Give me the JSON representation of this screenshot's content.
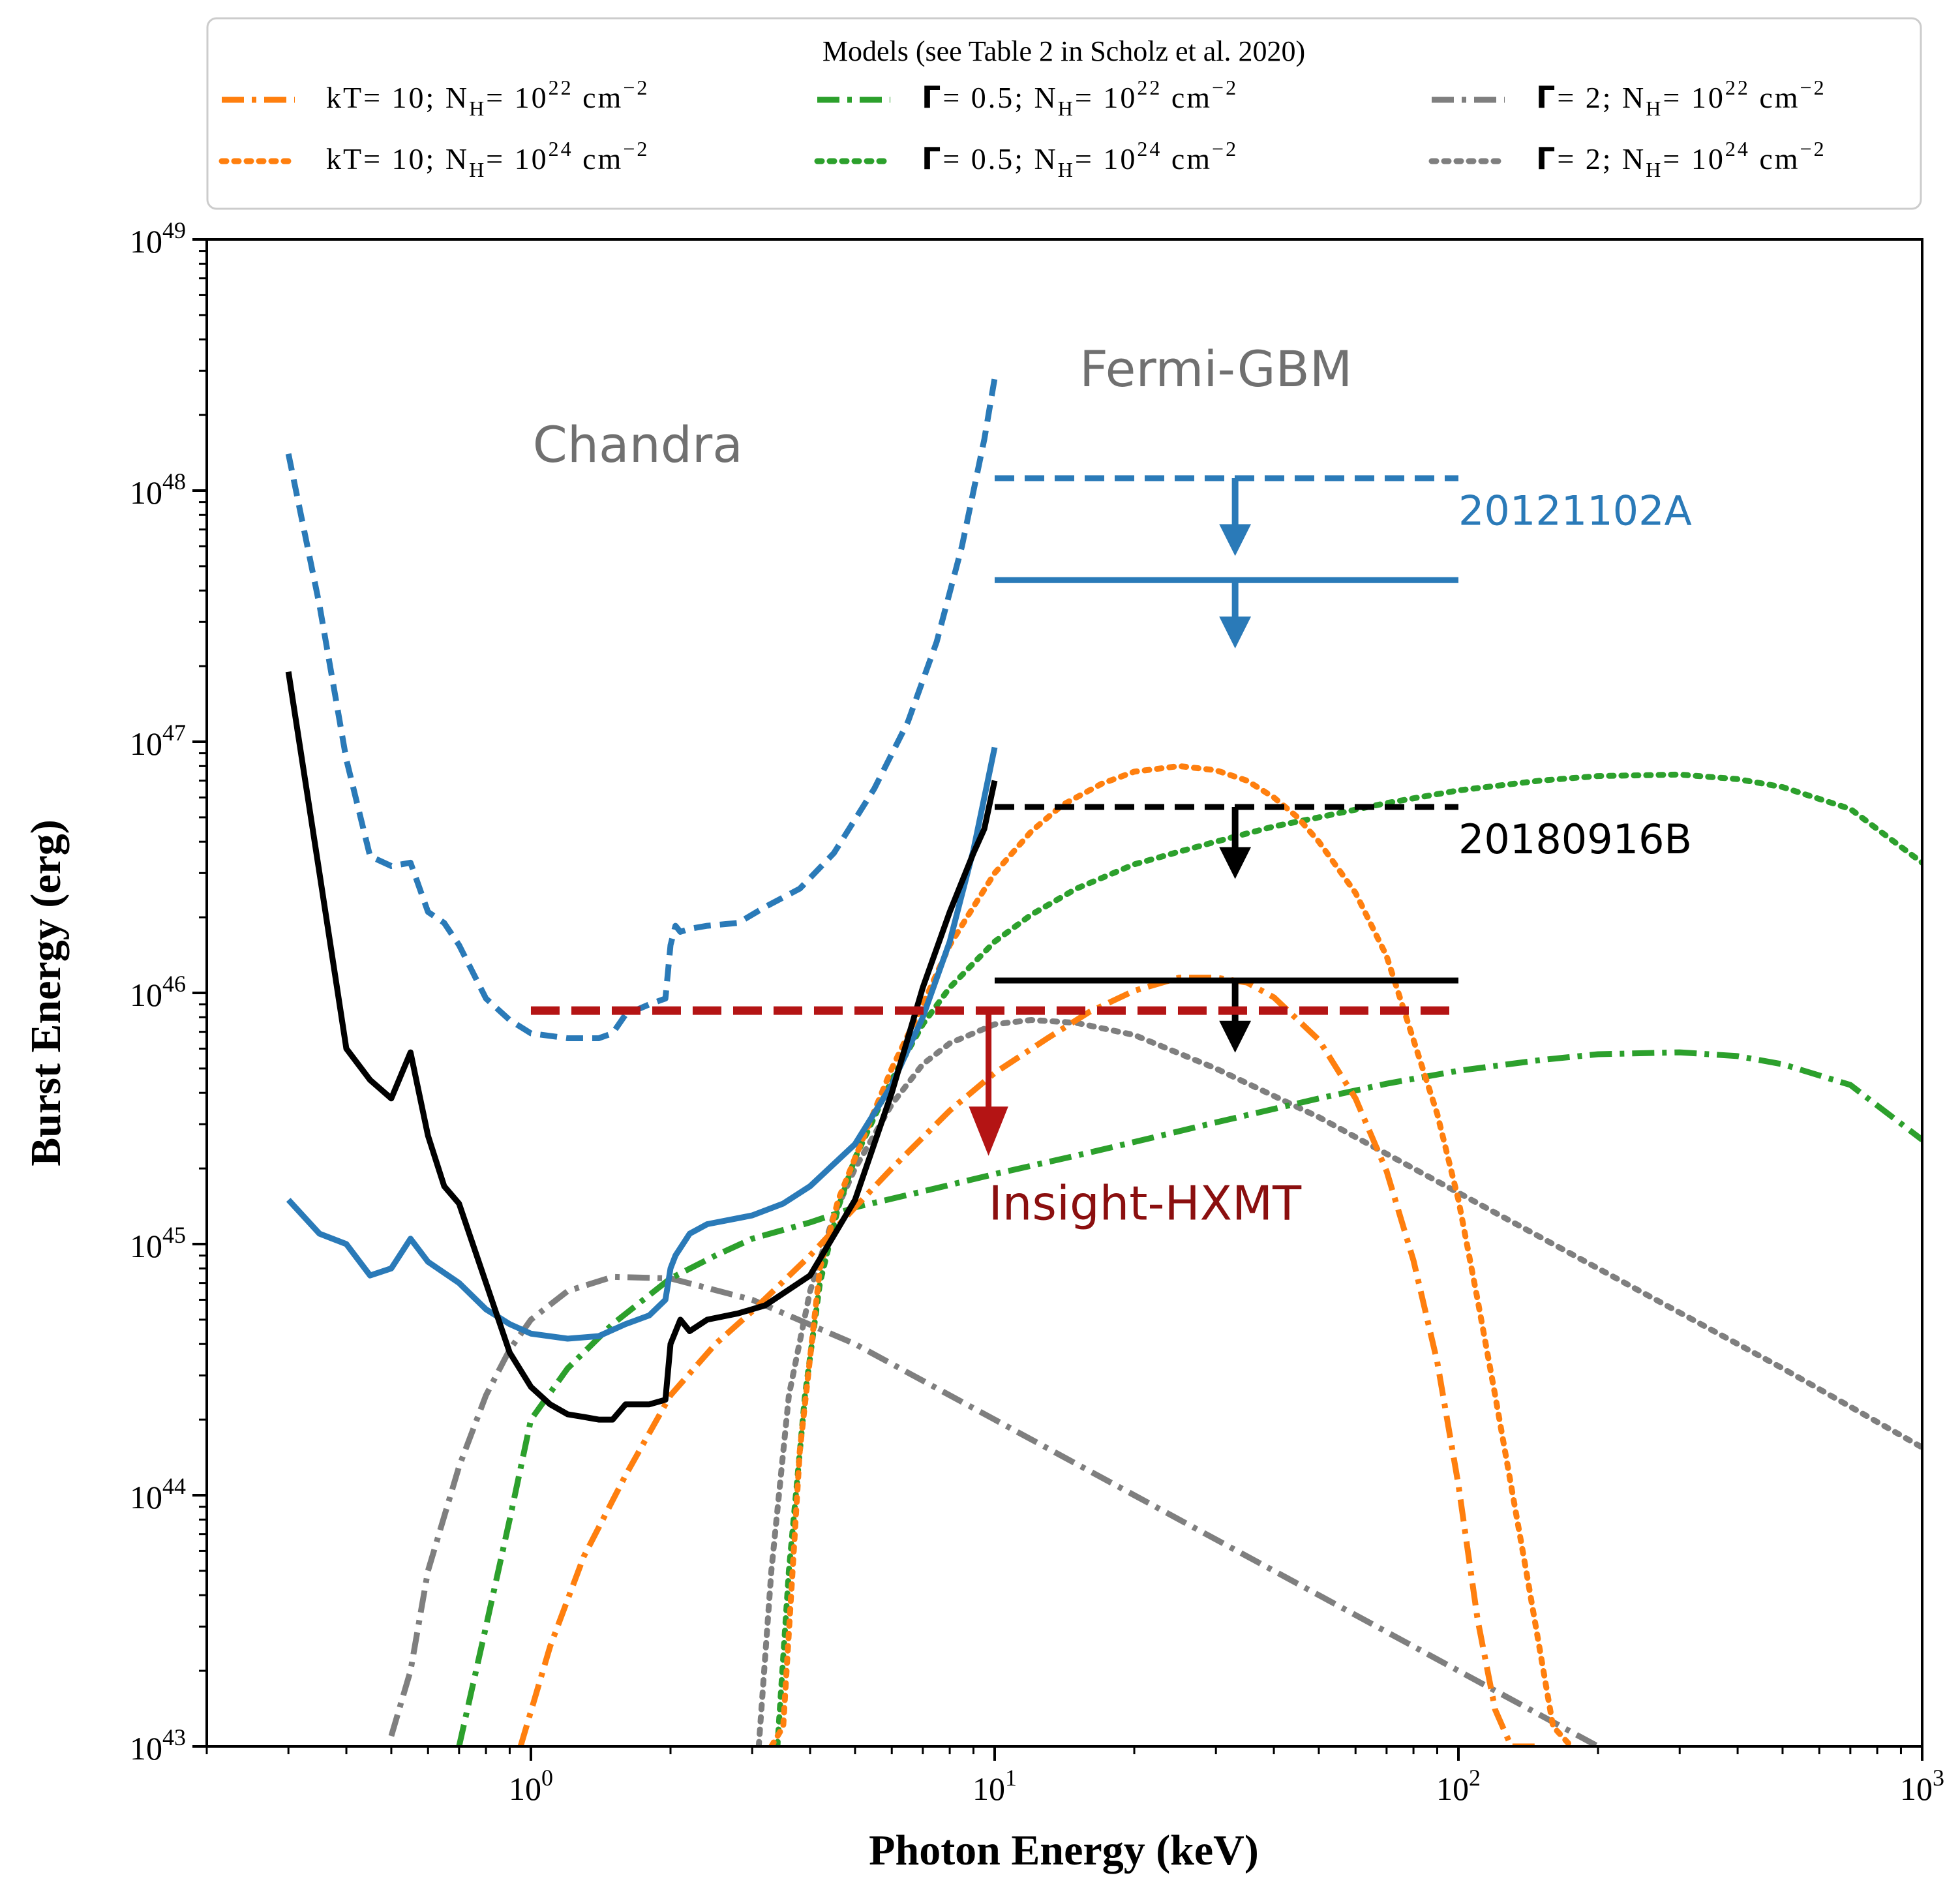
{
  "chart_data": {
    "type": "line",
    "xscale": "log",
    "yscale": "log",
    "xlim": [
      0.2,
      1000
    ],
    "ylim": [
      1e+43,
      1e+49
    ],
    "xlabel": "Photon Energy (keV)",
    "ylabel": "Burst Energy (erg)",
    "x_ticks": [
      {
        "value": 1,
        "base": "10",
        "exp": "0"
      },
      {
        "value": 10,
        "base": "10",
        "exp": "1"
      },
      {
        "value": 100,
        "base": "10",
        "exp": "2"
      },
      {
        "value": 1000,
        "base": "10",
        "exp": "3"
      }
    ],
    "y_ticks": [
      {
        "value": 1e+43,
        "base": "10",
        "exp": "43"
      },
      {
        "value": 1e+44,
        "base": "10",
        "exp": "44"
      },
      {
        "value": 1e+45,
        "base": "10",
        "exp": "45"
      },
      {
        "value": 1e+46,
        "base": "10",
        "exp": "46"
      },
      {
        "value": 1e+47,
        "base": "10",
        "exp": "47"
      },
      {
        "value": 1e+48,
        "base": "10",
        "exp": "48"
      },
      {
        "value": 1e+49,
        "base": "10",
        "exp": "49"
      }
    ],
    "legend": {
      "title": "Models (see Table 2 in Scholz et al. 2020)",
      "placement": "top, outside plot",
      "entries": [
        {
          "series": "kT10_NH22",
          "param": "kT",
          "param_value": "10",
          "nh_exp": "22",
          "unit": "cm",
          "unit_exp": "−2"
        },
        {
          "series": "G05_NH22",
          "param": "Γ",
          "param_value": "0.5",
          "nh_exp": "22",
          "unit": "cm",
          "unit_exp": "−2"
        },
        {
          "series": "G2_NH22",
          "param": "Γ",
          "param_value": "2",
          "nh_exp": "22",
          "unit": "cm",
          "unit_exp": "−2"
        },
        {
          "series": "kT10_NH24",
          "param": "kT",
          "param_value": "10",
          "nh_exp": "24",
          "unit": "cm",
          "unit_exp": "−2"
        },
        {
          "series": "G05_NH24",
          "param": "Γ",
          "param_value": "0.5",
          "nh_exp": "24",
          "unit": "cm",
          "unit_exp": "−2"
        },
        {
          "series": "G2_NH24",
          "param": "Γ",
          "param_value": "2",
          "nh_exp": "24",
          "unit": "cm",
          "unit_exp": "−2"
        }
      ],
      "nh_symbol": "N",
      "nh_sub": "H",
      "nh_base": "10"
    },
    "annotations": [
      {
        "id": "chandra",
        "text": "Chandra",
        "x": 1.7,
        "y": 1.3e+48,
        "color": "#707070"
      },
      {
        "id": "fermi",
        "text": "Fermi-GBM",
        "x": 30,
        "y": 2.6e+48,
        "color": "#707070"
      },
      {
        "id": "frb2012",
        "text": "20121102A",
        "x": 100,
        "y": 7.3e+47,
        "color": "#2a7ab8"
      },
      {
        "id": "frb2018",
        "text": "20180916B",
        "x": 100,
        "y": 3.6e+46,
        "color": "#000000"
      },
      {
        "id": "hxmt",
        "text": "Insight-HXMT",
        "x": 9.7,
        "y": 1.25e+45,
        "color": "#8b0f0f"
      }
    ],
    "limits": [
      {
        "name": "Fermi 20121102A dashed",
        "x": [
          10,
          100
        ],
        "y": 1.12e+48,
        "style": "dashed",
        "color": "#2a7ab8",
        "arrow_x": 33,
        "arrow_to": 5.6e+47
      },
      {
        "name": "Fermi 20121102A solid",
        "x": [
          10,
          100
        ],
        "y": 4.4e+47,
        "style": "solid",
        "color": "#2a7ab8",
        "arrow_x": 33,
        "arrow_to": 2.4e+47
      },
      {
        "name": "Fermi 20180916B dashed",
        "x": [
          10,
          100
        ],
        "y": 5.5e+46,
        "style": "dashed",
        "color": "#000000",
        "arrow_x": 33,
        "arrow_to": 2.9e+46
      },
      {
        "name": "Fermi 20180916B solid",
        "x": [
          10,
          100
        ],
        "y": 1.12e+46,
        "style": "solid",
        "color": "#000000",
        "arrow_x": 33,
        "arrow_to": 5.9e+45
      },
      {
        "name": "Insight-HXMT",
        "x": [
          1,
          100
        ],
        "y": 8.5e+45,
        "style": "dashed",
        "color": "#b41414",
        "arrow_x": 9.7,
        "arrow_to": 2.3e+45
      }
    ],
    "series": [
      {
        "id": "chandra_2012_dashed",
        "name": "Chandra 20121102A (dashed)",
        "color": "#2a7ab8",
        "style": "dashed",
        "x": [
          0.3,
          0.35,
          0.4,
          0.45,
          0.5,
          0.55,
          0.6,
          0.65,
          0.7,
          0.8,
          0.9,
          1.0,
          1.2,
          1.4,
          1.5,
          1.6,
          1.8,
          1.95,
          2.0,
          2.05,
          2.1,
          2.2,
          2.4,
          2.8,
          3.2,
          3.8,
          4.5,
          5.5,
          6.5,
          7.5,
          8.5,
          9.5,
          10
        ],
        "y": [
          1.4e+48,
          3.5e+47,
          8.5e+46,
          3.5e+46,
          3.2e+46,
          3.3e+46,
          2.1e+46,
          1.9e+46,
          1.55e+46,
          9.5e+45,
          7.8e+45,
          6.9e+45,
          6.6e+45,
          6.6e+45,
          6.9e+45,
          8.2e+45,
          9e+45,
          9.5e+45,
          1.55e+46,
          1.85e+46,
          1.75e+46,
          1.8e+46,
          1.85e+46,
          1.9e+46,
          2.2e+46,
          2.6e+46,
          3.6e+46,
          6.5e+46,
          1.2e+47,
          2.5e+47,
          6e+47,
          1.6e+48,
          2.8e+48
        ]
      },
      {
        "id": "chandra_2012_solid",
        "name": "Chandra 20121102A (solid)",
        "color": "#2a7ab8",
        "style": "solid",
        "x": [
          0.3,
          0.35,
          0.4,
          0.45,
          0.5,
          0.55,
          0.6,
          0.7,
          0.8,
          0.9,
          1.0,
          1.2,
          1.4,
          1.6,
          1.8,
          1.95,
          2.0,
          2.05,
          2.2,
          2.4,
          3.0,
          3.5,
          4.0,
          5.0,
          6.0,
          7.0,
          8.0,
          9.0,
          10
        ],
        "y": [
          1.5e+45,
          1.1e+45,
          1e+45,
          7.5e+44,
          8e+44,
          1.05e+45,
          8.5e+44,
          7e+44,
          5.5e+44,
          4.8e+44,
          4.4e+44,
          4.2e+44,
          4.3e+44,
          4.8e+44,
          5.2e+44,
          6e+44,
          8e+44,
          9e+44,
          1.1e+45,
          1.2e+45,
          1.3e+45,
          1.45e+45,
          1.7e+45,
          2.5e+45,
          4.3e+45,
          8e+45,
          1.6e+46,
          3.7e+46,
          9.5e+46
        ]
      },
      {
        "id": "chandra_2018_solid",
        "name": "Chandra 20180916B (solid)",
        "color": "#000000",
        "style": "solid",
        "x": [
          0.3,
          0.35,
          0.4,
          0.45,
          0.5,
          0.55,
          0.6,
          0.65,
          0.7,
          0.8,
          0.9,
          1.0,
          1.1,
          1.2,
          1.3,
          1.4,
          1.5,
          1.6,
          1.7,
          1.8,
          1.95,
          2.0,
          2.1,
          2.2,
          2.4,
          2.8,
          3.2,
          4.0,
          5.0,
          6.0,
          7.0,
          8.0,
          9.0,
          9.5,
          10
        ],
        "y": [
          1.9e+47,
          3e+46,
          6e+45,
          4.5e+45,
          3.8e+45,
          5.8e+45,
          2.7e+45,
          1.7e+45,
          1.45e+45,
          7e+44,
          3.7e+44,
          2.7e+44,
          2.3e+44,
          2.1e+44,
          2.05e+44,
          2e+44,
          2e+44,
          2.3e+44,
          2.3e+44,
          2.3e+44,
          2.4e+44,
          4e+44,
          5e+44,
          4.5e+44,
          5e+44,
          5.3e+44,
          5.7e+44,
          7.5e+44,
          1.5e+45,
          4e+45,
          1.05e+46,
          2.1e+46,
          3.6e+46,
          4.5e+46,
          7e+46
        ]
      },
      {
        "id": "kT10_NH22",
        "name": "kT=10; NH=1e22 cm^-2",
        "color": "#ff7f0e",
        "style": "dashdot",
        "x": [
          0.95,
          1.1,
          1.3,
          1.6,
          2.0,
          2.5,
          3.0,
          4.0,
          5.0,
          6.0,
          8.0,
          10,
          13,
          16,
          20,
          25,
          30,
          35,
          40,
          50,
          60,
          70,
          80,
          90,
          100,
          110,
          120,
          130,
          140,
          150
        ],
        "y": [
          1e+43,
          2.5e+43,
          5.7e+43,
          1.2e+44,
          2.5e+44,
          4e+44,
          5.4e+44,
          9e+44,
          1.4e+45,
          2e+45,
          3.4e+45,
          4.8e+45,
          6.6e+45,
          8.4e+45,
          1.02e+46,
          1.15e+46,
          1.15e+46,
          1.1e+46,
          9.6e+45,
          6.5e+45,
          3.8e+45,
          1.95e+45,
          8.6e+44,
          3.4e+44,
          1.1e+44,
          3.2e+43,
          1.4e+43,
          1e+43,
          1e+43,
          1e+43
        ]
      },
      {
        "id": "kT10_NH24",
        "name": "kT=10; NH=1e24 cm^-2",
        "color": "#ff7f0e",
        "style": "dotted",
        "x": [
          3.3,
          3.5,
          3.8,
          4.2,
          4.6,
          5.0,
          6.0,
          7.0,
          8.0,
          9.0,
          10,
          12,
          14,
          17,
          20,
          25,
          30,
          35,
          40,
          45,
          50,
          60,
          70,
          80,
          90,
          100,
          110,
          120,
          140,
          160,
          175
        ],
        "y": [
          1e+43,
          1.2e+43,
          1.5e+44,
          8e+44,
          1.5e+45,
          2.2e+45,
          5e+45,
          9e+45,
          1.55e+46,
          2.2e+46,
          3e+46,
          4.4e+46,
          5.6e+46,
          6.8e+46,
          7.6e+46,
          8e+46,
          7.7e+46,
          7e+46,
          6e+46,
          5e+46,
          4e+46,
          2.5e+46,
          1.4e+46,
          6.5e+45,
          3.3e+45,
          1.5e+45,
          6e+44,
          2.5e+44,
          5e+43,
          1.2e+43,
          1e+43
        ]
      },
      {
        "id": "G05_NH22",
        "name": "Γ=0.5; NH=1e22 cm^-2",
        "color": "#2ca02c",
        "style": "dashdot",
        "x": [
          0.7,
          0.8,
          0.9,
          1.0,
          1.2,
          1.5,
          2.0,
          2.5,
          3.0,
          4.0,
          5.0,
          7.0,
          10,
          15,
          20,
          30,
          50,
          70,
          100,
          150,
          200,
          300,
          400,
          500,
          700,
          1000
        ],
        "y": [
          1e+43,
          3e+43,
          8e+43,
          2e+44,
          3.2e+44,
          4.8e+44,
          7.3e+44,
          9e+44,
          1.05e+45,
          1.22e+45,
          1.4e+45,
          1.62e+45,
          1.9e+45,
          2.25e+45,
          2.55e+45,
          3.05e+45,
          3.8e+45,
          4.35e+45,
          4.9e+45,
          5.4e+45,
          5.7e+45,
          5.8e+45,
          5.6e+45,
          5.2e+45,
          4.3e+45,
          2.6e+45
        ]
      },
      {
        "id": "G05_NH24",
        "name": "Γ=0.5; NH=1e24 cm^-2",
        "color": "#2ca02c",
        "style": "dotted",
        "x": [
          3.4,
          3.6,
          3.9,
          4.2,
          4.6,
          5.0,
          6.0,
          7.0,
          8.0,
          10,
          12,
          15,
          20,
          25,
          30,
          40,
          50,
          70,
          100,
          150,
          200,
          300,
          400,
          500,
          700,
          1000
        ],
        "y": [
          1e+43,
          5e+43,
          2.5e+44,
          7e+44,
          1.4e+45,
          2.2e+45,
          4.5e+45,
          7.5e+45,
          1.05e+46,
          1.6e+46,
          2.05e+46,
          2.6e+46,
          3.25e+46,
          3.65e+46,
          4e+46,
          4.6e+46,
          5e+46,
          5.7e+46,
          6.4e+46,
          7e+46,
          7.3e+46,
          7.4e+46,
          7.1e+46,
          6.6e+46,
          5.4e+46,
          3.3e+46
        ]
      },
      {
        "id": "G2_NH22",
        "name": "Γ=2; NH=1e22 cm^-2",
        "color": "#7f7f7f",
        "style": "dashdot",
        "x": [
          0.5,
          0.55,
          0.6,
          0.7,
          0.8,
          0.9,
          1.0,
          1.2,
          1.5,
          2.0,
          3.0,
          5.0,
          10,
          20,
          50,
          100,
          200
        ],
        "y": [
          1.1e+43,
          2e+43,
          5e+43,
          1.3e+44,
          2.5e+44,
          3.8e+44,
          5e+44,
          6.5e+44,
          7.4e+44,
          7.3e+44,
          6e+44,
          4e+44,
          2e+44,
          1e+44,
          4e+43,
          2e+43,
          1e+43
        ]
      },
      {
        "id": "G2_NH24",
        "name": "Γ=2; NH=1e24 cm^-2",
        "color": "#7f7f7f",
        "style": "dotted",
        "x": [
          3.1,
          3.3,
          3.6,
          4.0,
          4.5,
          5.0,
          6.0,
          7.0,
          8.0,
          10,
          12,
          15,
          20,
          30,
          50,
          100,
          200,
          500,
          1000
        ],
        "y": [
          1e+43,
          5e+43,
          2.5e+44,
          6.5e+44,
          1.3e+45,
          2e+45,
          3.6e+45,
          5.2e+45,
          6.3e+45,
          7.5e+45,
          7.8e+45,
          7.6e+45,
          6.8e+45,
          5e+45,
          3.2e+45,
          1.6e+45,
          8e+44,
          3.2e+44,
          1.55e+44
        ]
      }
    ]
  }
}
